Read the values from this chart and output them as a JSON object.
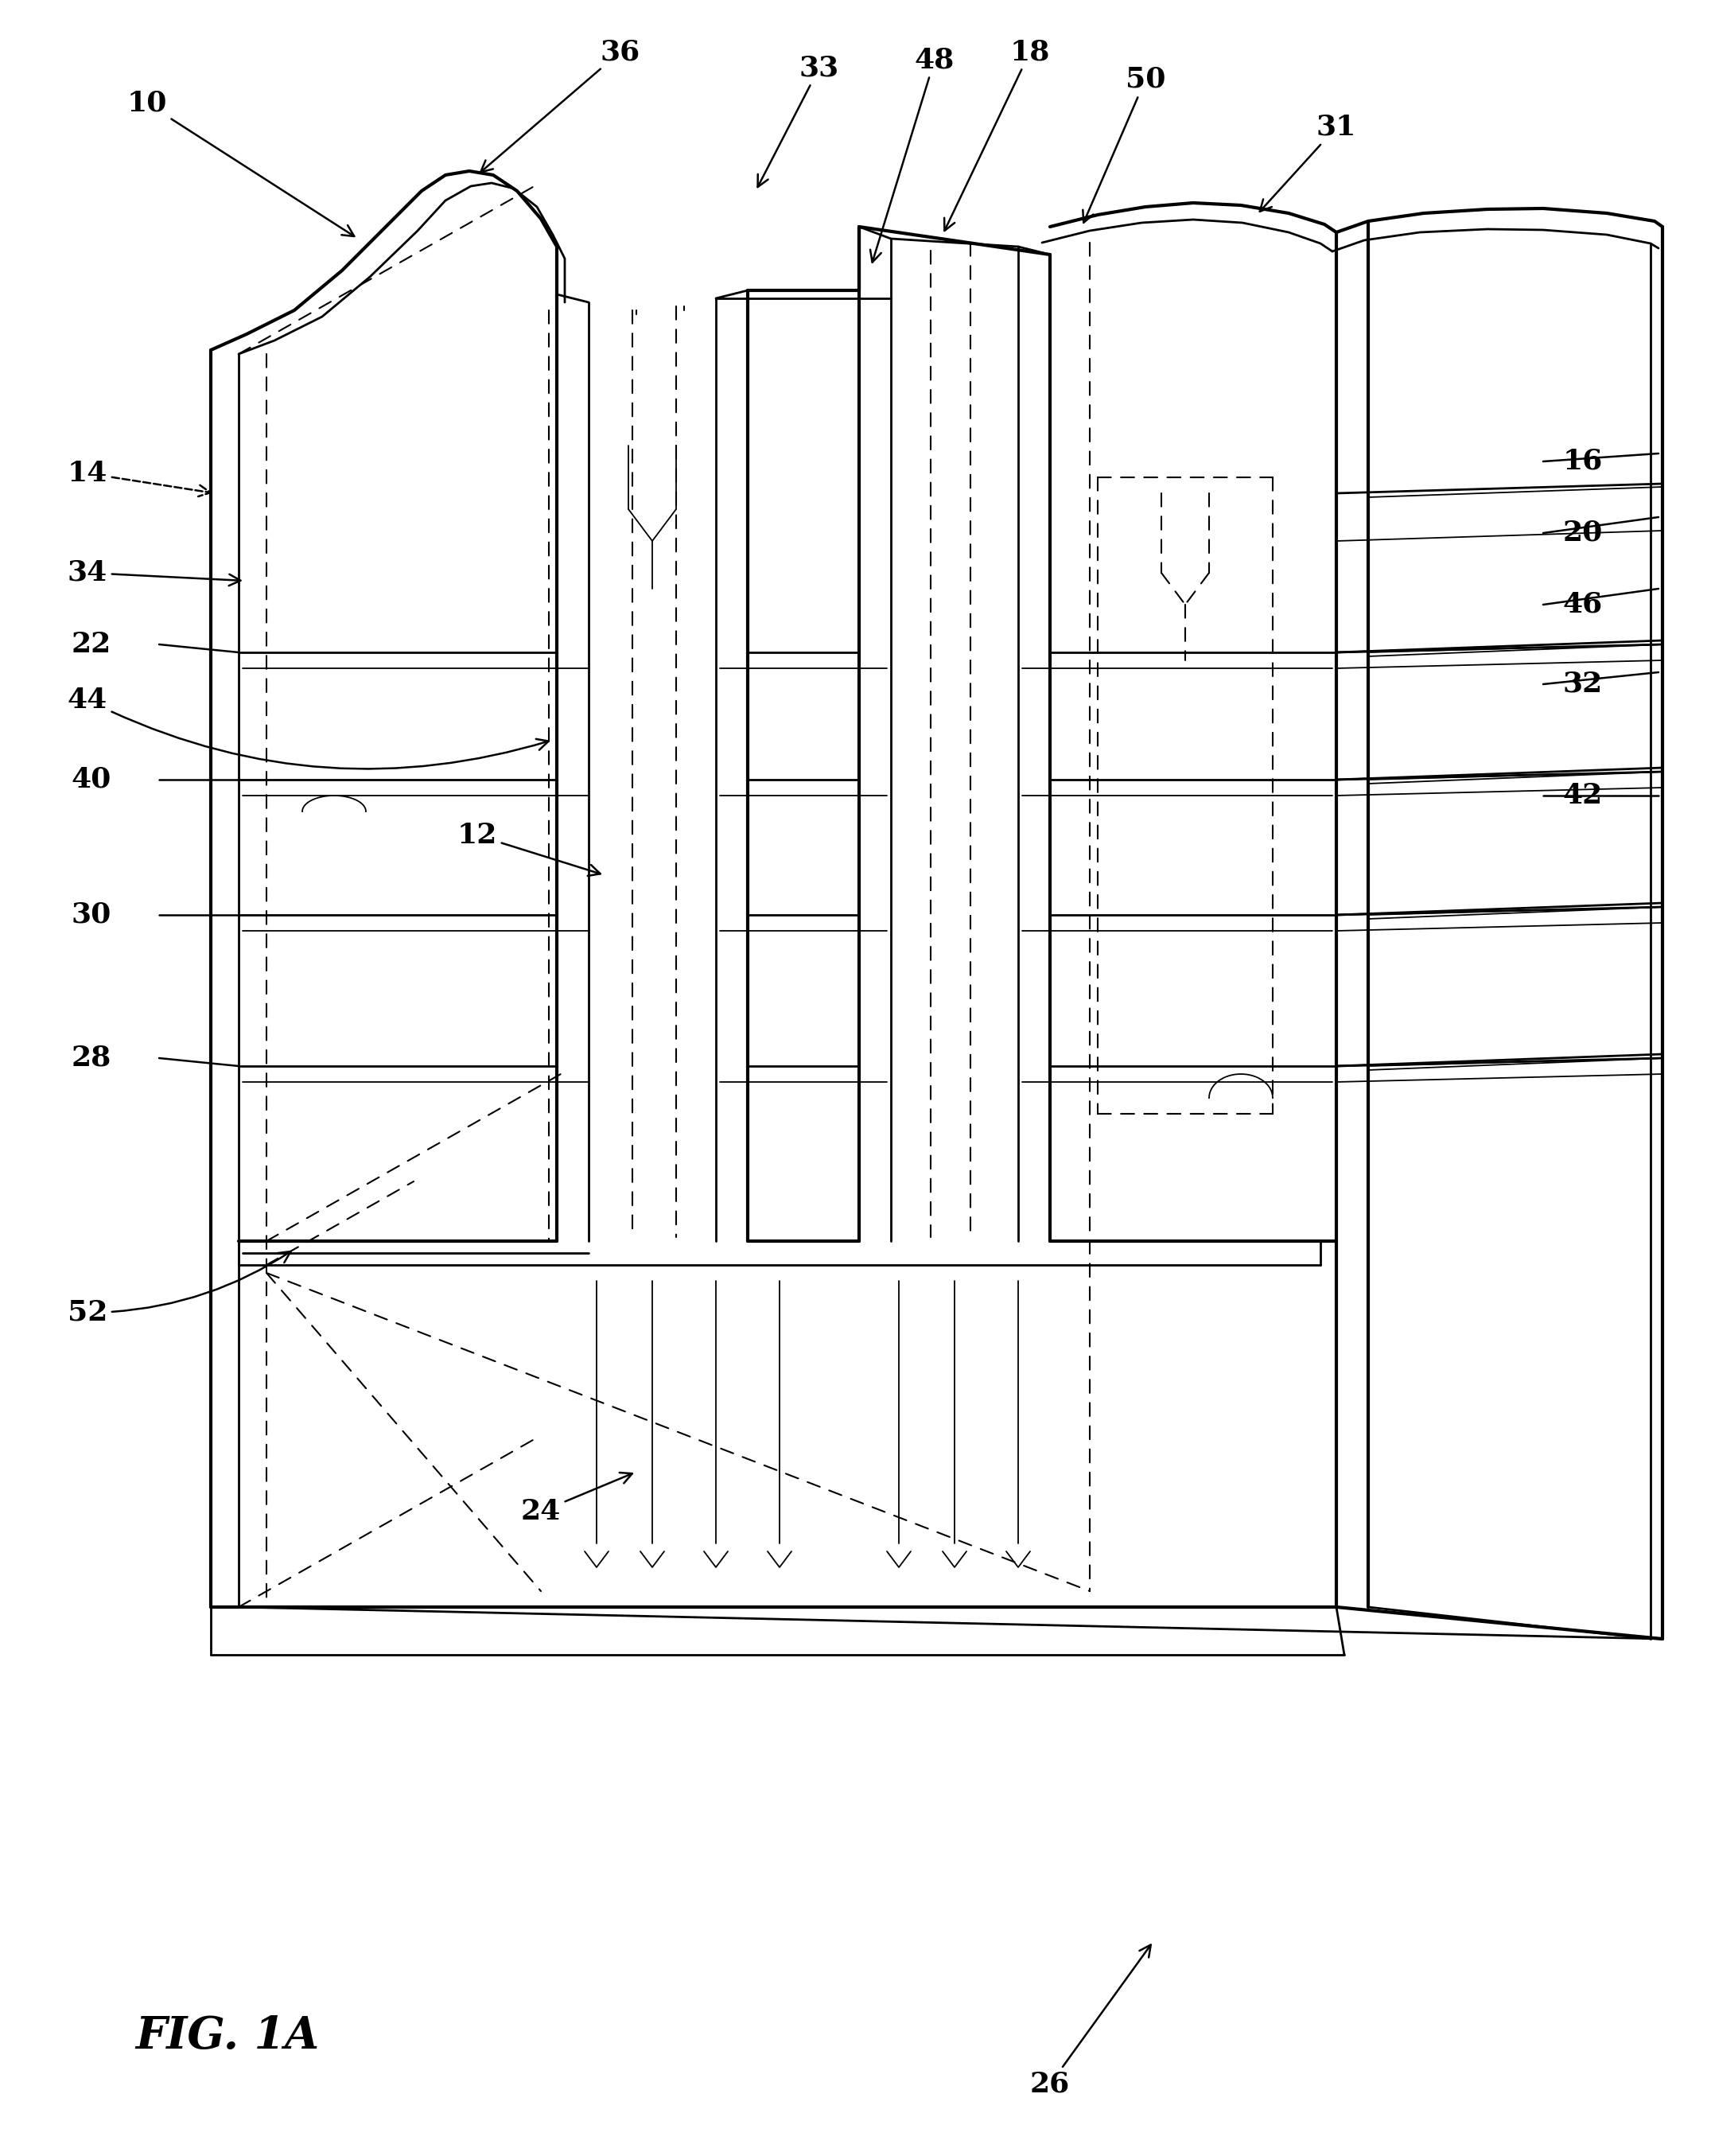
{
  "background_color": "#ffffff",
  "line_color": "#000000",
  "fig_label": "FIG. 1A",
  "label_fontsize": 26,
  "fig_fontsize": 40,
  "lw_thick": 3.0,
  "lw_med": 2.0,
  "lw_thin": 1.3,
  "lw_dash": 1.5
}
